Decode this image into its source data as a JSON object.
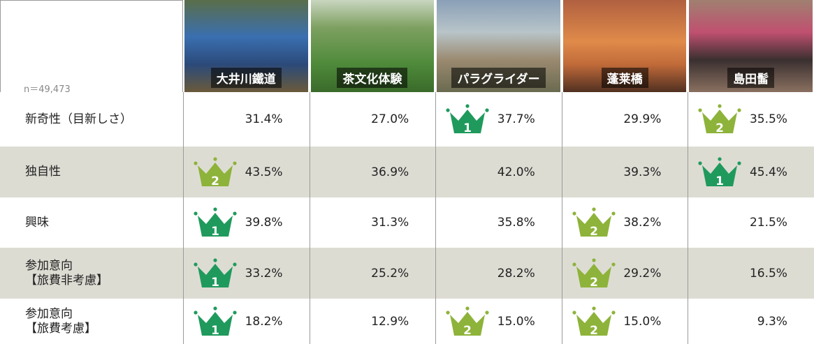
{
  "table": {
    "note": "n＝49,473",
    "columns": [
      "大井川鐵道",
      "茶文化体験",
      "パラグライダー",
      "蓬莱橋",
      "島田髷"
    ],
    "rows": [
      {
        "label": [
          "新奇性（目新しさ）"
        ],
        "cells": [
          {
            "value": "31.4%"
          },
          {
            "value": "27.0%"
          },
          {
            "value": "37.7%",
            "rank": 1
          },
          {
            "value": "29.9%"
          },
          {
            "value": "35.5%",
            "rank": 2
          }
        ]
      },
      {
        "label": [
          "独自性"
        ],
        "cells": [
          {
            "value": "43.5%",
            "rank": 2
          },
          {
            "value": "36.9%"
          },
          {
            "value": "42.0%"
          },
          {
            "value": "39.3%"
          },
          {
            "value": "45.4%",
            "rank": 1
          }
        ]
      },
      {
        "label": [
          "興味"
        ],
        "cells": [
          {
            "value": "39.8%",
            "rank": 1
          },
          {
            "value": "31.3%"
          },
          {
            "value": "35.8%"
          },
          {
            "value": "38.2%",
            "rank": 2
          },
          {
            "value": "21.5%"
          }
        ]
      },
      {
        "label": [
          "参加意向",
          "【旅費非考慮】"
        ],
        "cells": [
          {
            "value": "33.2%",
            "rank": 1
          },
          {
            "value": "25.2%"
          },
          {
            "value": "28.2%"
          },
          {
            "value": "29.2%",
            "rank": 2
          },
          {
            "value": "16.5%"
          }
        ]
      },
      {
        "label": [
          "参加意向",
          "【旅費考慮】"
        ],
        "cells": [
          {
            "value": "18.2%",
            "rank": 1
          },
          {
            "value": "12.9%"
          },
          {
            "value": "15.0%",
            "rank": 2
          },
          {
            "value": "15.0%",
            "rank": 2
          },
          {
            "value": "9.3%"
          }
        ]
      }
    ]
  }
}
